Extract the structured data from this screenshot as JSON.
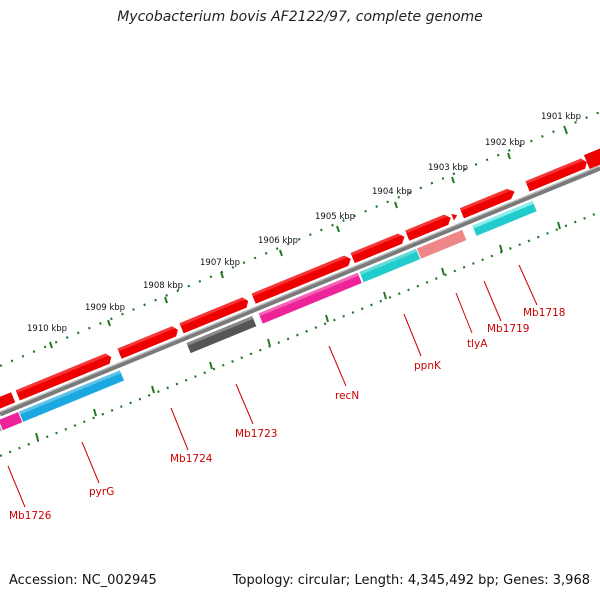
{
  "title": "Mycobacterium bovis AF2122/97, complete genome",
  "footer": {
    "accession_label": "Accession:",
    "accession": "NC_002945",
    "topology_label": "Topology:",
    "topology": "circular",
    "length_label": "Length:",
    "length": "4,345,492 bp",
    "genes_label": "Genes:",
    "genes": "3,968"
  },
  "colors": {
    "cds_forward": "#ee0000",
    "cds_reverse_cyan": "#22cccc",
    "cds_reverse_blue": "#1aa8e0",
    "cds_reverse_pink": "#ee2299",
    "cds_reverse_gray": "#555555",
    "cds_reverse_salmon": "#ee8888",
    "backbone": "#7a7a7a",
    "ticks": "#227722",
    "label": "#cc0000"
  },
  "scale_ticks": [
    "1901 kbp",
    "1902 kbp",
    "1903 kbp",
    "1904 kbp",
    "1905 kbp",
    "1906 kbp",
    "1907 kbp",
    "1908 kbp",
    "1909 kbp",
    "1910 kbp"
  ],
  "gene_labels": [
    "Mb1718",
    "Mb1719",
    "tlyA",
    "ppnK",
    "recN",
    "Mb1723",
    "Mb1724",
    "pyrG",
    "Mb1726"
  ]
}
